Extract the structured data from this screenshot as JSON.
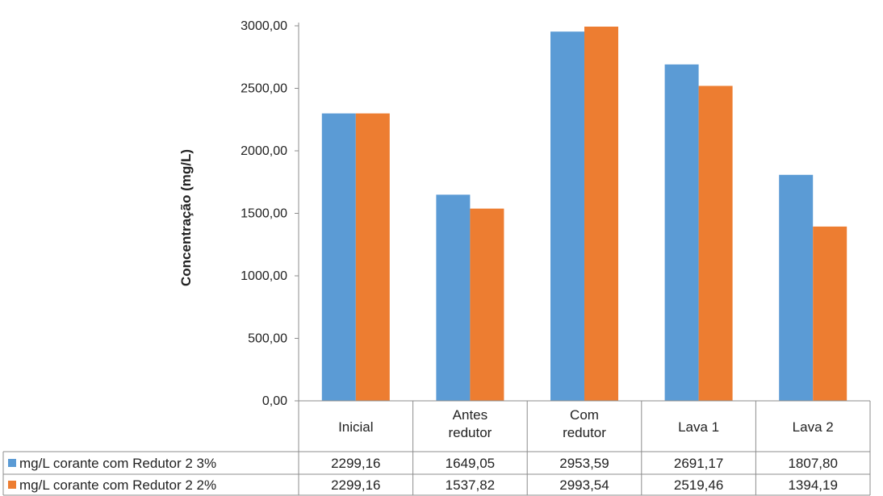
{
  "chart_data": {
    "type": "bar",
    "title": "",
    "xlabel": "",
    "ylabel": "Concentração (mg/L)",
    "ylim": [
      0,
      3000
    ],
    "yticks": [
      "0,00",
      "500,00",
      "1000,00",
      "1500,00",
      "2000,00",
      "2500,00",
      "3000,00"
    ],
    "ytick_values": [
      0,
      500,
      1000,
      1500,
      2000,
      2500,
      3000
    ],
    "categories": [
      [
        "Inicial"
      ],
      [
        "Antes",
        "redutor"
      ],
      [
        "Com",
        "redutor"
      ],
      [
        "Lava 1"
      ],
      [
        "Lava 2"
      ]
    ],
    "series": [
      {
        "name": "mg/L corante com Redutor 2 3%",
        "color": "#5b9bd5",
        "values": [
          2299.16,
          1649.05,
          2953.59,
          2691.17,
          1807.8
        ],
        "labels": [
          "2299,16",
          "1649,05",
          "2953,59",
          "2691,17",
          "1807,80"
        ]
      },
      {
        "name": "mg/L corante com Redutor 2 2%",
        "color": "#ed7d31",
        "values": [
          2299.16,
          1537.82,
          2993.54,
          2519.46,
          1394.19
        ],
        "labels": [
          "2299,16",
          "1537,82",
          "2993,54",
          "2519,46",
          "1394,19"
        ]
      }
    ],
    "grid": false,
    "legend": "data-table-left"
  }
}
